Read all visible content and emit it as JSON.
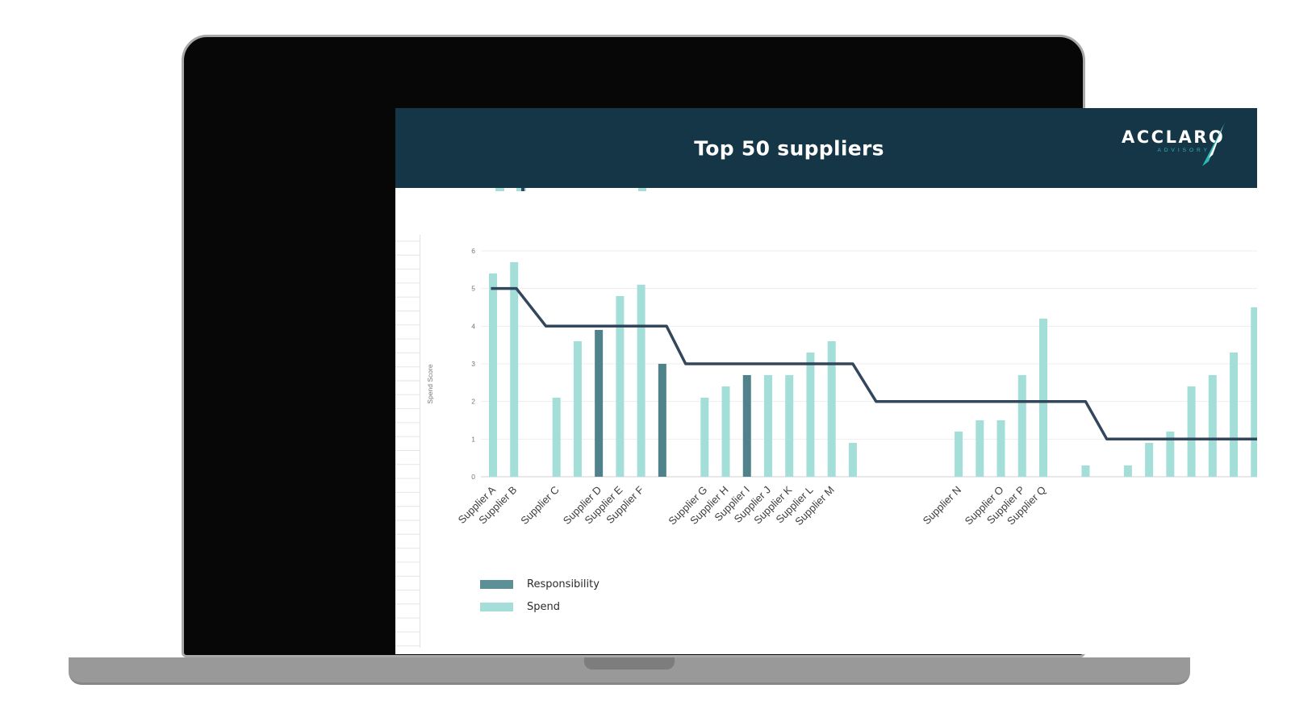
{
  "header": {
    "title": "Top 50 suppliers",
    "logo": {
      "name": "ACCLARO",
      "tagline": "ADVISORY"
    }
  },
  "legend": {
    "items": [
      {
        "label": "Responsibility",
        "color": "#5d8f97"
      },
      {
        "label": "Spend",
        "color": "#a3ded9"
      }
    ]
  },
  "colors": {
    "header_bg": "#143647",
    "spend_bar": "#a3ded9",
    "responsibility_bar": "#4f828b",
    "trend_line": "#33475c",
    "gridline": "#ededed",
    "axis_line": "#d2d2d2",
    "axis_text": "#767676",
    "label_text": "#3d3d3d"
  },
  "chart_data": {
    "type": "bar",
    "title": "Top 50 suppliers",
    "xlabel": "",
    "ylabel": "Spend Score",
    "ylim": [
      0,
      6
    ],
    "yticks": [
      0,
      1,
      2,
      3,
      4,
      5,
      6
    ],
    "grid": true,
    "legend_position": "bottom-left",
    "slot_count": 37,
    "series": [
      {
        "name": "Responsibility",
        "type": "bar",
        "color": "#4f828b",
        "points": [
          [
            5,
            3.9
          ],
          [
            8,
            3.0
          ],
          [
            12,
            2.7
          ]
        ]
      },
      {
        "name": "Spend",
        "type": "bar",
        "color": "#a3ded9",
        "points": [
          [
            0,
            5.4
          ],
          [
            1,
            5.7
          ],
          [
            3,
            2.1
          ],
          [
            4,
            3.6
          ],
          [
            6,
            4.8
          ],
          [
            7,
            5.1
          ],
          [
            10,
            2.1
          ],
          [
            11,
            2.4
          ],
          [
            13,
            2.7
          ],
          [
            14,
            2.7
          ],
          [
            15,
            3.3
          ],
          [
            16,
            3.6
          ],
          [
            17,
            0.9
          ],
          [
            22,
            1.2
          ],
          [
            23,
            1.5
          ],
          [
            24,
            1.5
          ],
          [
            25,
            2.7
          ],
          [
            26,
            4.2
          ],
          [
            28,
            0.3
          ],
          [
            30,
            0.3
          ],
          [
            31,
            0.9
          ],
          [
            32,
            1.2
          ],
          [
            33,
            2.4
          ],
          [
            34,
            2.7
          ],
          [
            35,
            3.3
          ],
          [
            36,
            4.5
          ]
        ]
      },
      {
        "name": "score-step-line",
        "type": "line",
        "color": "#33475c",
        "points": [
          [
            -0.1,
            5
          ],
          [
            1.1,
            5
          ],
          [
            2.5,
            4
          ],
          [
            8.2,
            4
          ],
          [
            9.1,
            3
          ],
          [
            17,
            3
          ],
          [
            18.1,
            2
          ],
          [
            28,
            2
          ],
          [
            29,
            1
          ],
          [
            37,
            1
          ]
        ]
      }
    ],
    "xlabels": [
      [
        0,
        "Supplier A"
      ],
      [
        1,
        "Supplier B"
      ],
      [
        3,
        "Supplier C"
      ],
      [
        5,
        "Supplier D"
      ],
      [
        6,
        "Supplier E"
      ],
      [
        7,
        "Supplier F"
      ],
      [
        10,
        "Supplier G"
      ],
      [
        11,
        "Supplier H"
      ],
      [
        12,
        "Supplier I"
      ],
      [
        13,
        "Supplier J"
      ],
      [
        14,
        "Supplier K"
      ],
      [
        15,
        "Supplier L"
      ],
      [
        16,
        "Supplier M"
      ],
      [
        22,
        "Supplier N"
      ],
      [
        24,
        "Supplier O"
      ],
      [
        25,
        "Supplier P"
      ],
      [
        26,
        "Supplier Q"
      ]
    ],
    "clipped_bar_tops": {
      "light": [
        [
          124,
          11
        ],
        [
          150,
          12
        ],
        [
          301,
          10
        ]
      ],
      "dark": [
        [
          156,
          4
        ]
      ]
    }
  }
}
